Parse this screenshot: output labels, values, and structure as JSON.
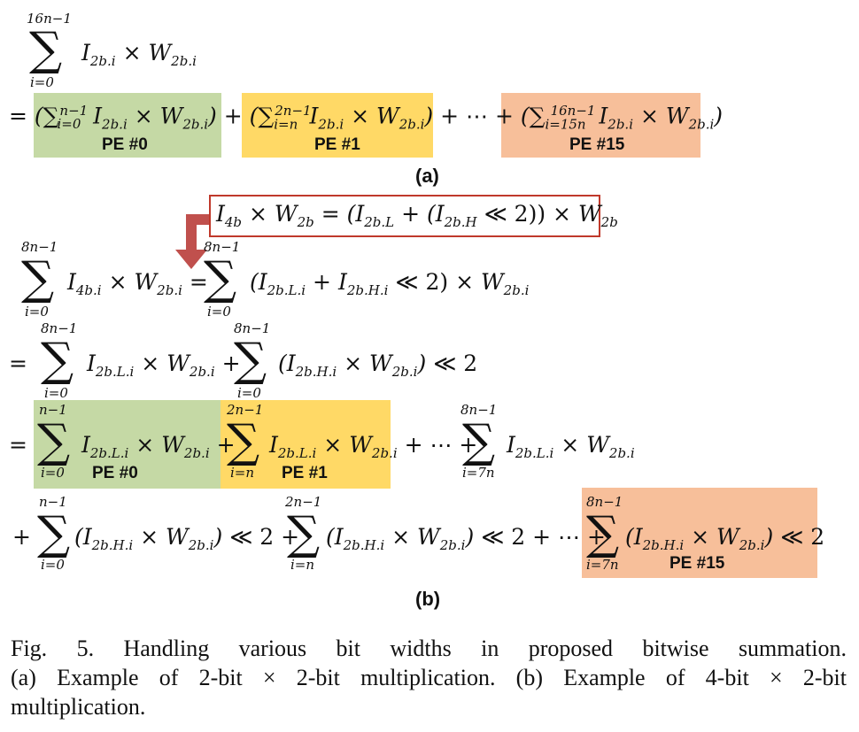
{
  "part_a": {
    "sum_top": "16n−1",
    "sum_bottom": "i=0",
    "pe_labels": [
      "PE #0",
      "PE #1",
      "PE #15"
    ],
    "label": "(a)"
  },
  "part_b": {
    "top8": "8n−1",
    "bot0": "i=0",
    "top1": "n−1",
    "top2": "2n−1",
    "botn": "i=n",
    "bot7n": "i=7n",
    "pe_labels": [
      "PE #0",
      "PE #1",
      "PE #15"
    ],
    "label": "(b)"
  },
  "caption": {
    "line1": "Fig. 5. Handling various bit widths in proposed bitwise summation.",
    "line2": "(a) Example of 2-bit × 2-bit multiplication. (b) Example of 4-bit × 2-bit",
    "line3": "multiplication."
  },
  "colors": {
    "pe0": "#c5d9a5",
    "pe1": "#ffd966",
    "pe15": "#f7bf9a",
    "arrow": "#c0504d"
  }
}
